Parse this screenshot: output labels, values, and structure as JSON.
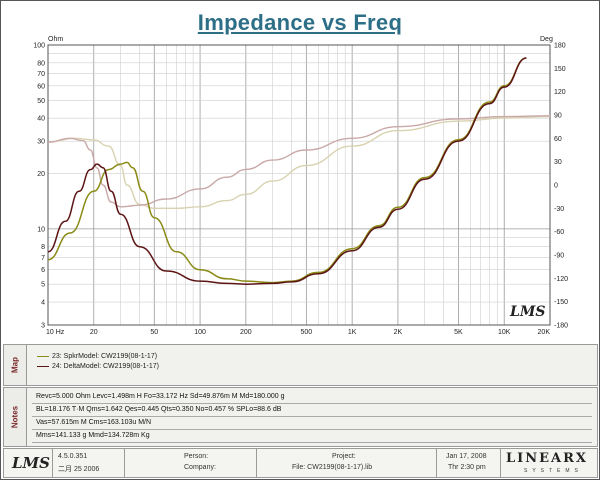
{
  "title": "Impedance vs Freq",
  "axes": {
    "left_unit": "Ohm",
    "right_unit": "Deg",
    "left_ticks": [
      "100",
      "80",
      "70",
      "60",
      "50",
      "40",
      "30",
      "20",
      "10",
      "8",
      "7",
      "6",
      "5",
      "4",
      "3"
    ],
    "right_ticks": [
      "180",
      "150",
      "120",
      "90",
      "60",
      "30",
      "0",
      "-30",
      "-60",
      "-90",
      "-120",
      "-150",
      "-180"
    ],
    "x_ticks": [
      "10 Hz",
      "20",
      "50",
      "100",
      "200",
      "500",
      "1K",
      "2K",
      "5K",
      "10K",
      "20K"
    ],
    "watermark": "LMS"
  },
  "chart_data": {
    "type": "line",
    "title": "Impedance vs Freq",
    "x_scale": "log",
    "xlim": [
      10,
      20000
    ],
    "y_left": {
      "unit": "Ohm",
      "scale": "log",
      "ylim": [
        3,
        100
      ]
    },
    "y_right": {
      "unit": "Deg",
      "scale": "linear",
      "ylim": [
        -180,
        180
      ]
    },
    "grid": true,
    "series": [
      {
        "name": "23: SpkrModel: CW2199(08-1-17)",
        "kind": "impedance",
        "axis": "left",
        "color": "#8a8a16",
        "x": [
          10,
          14,
          20,
          25,
          30,
          33,
          36,
          42,
          50,
          70,
          100,
          150,
          200,
          300,
          400,
          600,
          1000,
          1500,
          2000,
          3000,
          5000,
          8000,
          10000,
          14000
        ],
        "y": [
          6.8,
          9.5,
          16,
          21,
          22.5,
          23,
          21.5,
          16,
          11.5,
          7.5,
          6.0,
          5.35,
          5.2,
          5.1,
          5.2,
          5.8,
          7.8,
          10.4,
          13.1,
          19,
          30.5,
          49,
          60,
          85
        ]
      },
      {
        "name": "24: DeltaModel: CW2199(08-1-17)",
        "kind": "impedance",
        "axis": "left",
        "color": "#5c1414",
        "x": [
          10,
          13,
          16,
          19,
          21,
          23,
          26,
          30,
          40,
          60,
          100,
          150,
          200,
          300,
          400,
          600,
          1000,
          1500,
          2000,
          3000,
          5000,
          8000,
          10000,
          14000
        ],
        "y": [
          7.5,
          11,
          16,
          21,
          22.5,
          21.5,
          16,
          12,
          8,
          5.9,
          5.2,
          5.05,
          5.0,
          5.05,
          5.15,
          5.7,
          7.6,
          10.2,
          12.8,
          18.6,
          30,
          48,
          59,
          85
        ]
      },
      {
        "name": "23: SpkrModel: CW2199(08-1-17)",
        "kind": "phase",
        "axis": "right",
        "color": "#d8d2b0",
        "x": [
          10,
          15,
          20,
          25,
          30,
          33,
          40,
          50,
          70,
          100,
          150,
          200,
          300,
          500,
          1000,
          2000,
          5000,
          10000,
          20000
        ],
        "y": [
          55,
          60,
          58,
          50,
          25,
          0,
          -25,
          -30,
          -30,
          -28,
          -20,
          -12,
          5,
          25,
          50,
          70,
          82,
          86,
          88
        ]
      },
      {
        "name": "24: DeltaModel: CW2199(08-1-17)",
        "kind": "phase",
        "axis": "right",
        "color": "#c9a8a8",
        "x": [
          10,
          14,
          17,
          19,
          21,
          23,
          26,
          30,
          40,
          60,
          100,
          150,
          200,
          300,
          500,
          1000,
          2000,
          5000,
          10000,
          20000
        ],
        "y": [
          55,
          60,
          57,
          45,
          22,
          0,
          -22,
          -28,
          -26,
          -18,
          -5,
          10,
          20,
          32,
          45,
          60,
          75,
          85,
          88,
          89
        ]
      }
    ]
  },
  "map": {
    "label": "Map",
    "items": [
      {
        "text": "23: SpkrModel: CW2199(08-1-17)",
        "color": "#8a8a16"
      },
      {
        "text": "24: DeltaModel: CW2199(08-1-17)",
        "color": "#5c1414"
      }
    ]
  },
  "notes": {
    "label": "Notes",
    "lines": [
      "Revc=5.000 Ohm  Levc=1.498m H  Fo=33.172 Hz  Sd=49.876m M  Md=180.000 g",
      "BL=18.176 T·M  Qms=1.642  Qes=0.445  Qts=0.350  No=0.457 %  SPLo=88.6 dB",
      "Vas=57.615m M     Cms=163.103u M/N",
      "Mms=141.133 g  Mmd=134.728m Kg"
    ]
  },
  "footer": {
    "logo": "LMS",
    "version": "4.5.0.351",
    "version_date": "二月 25 2006",
    "person_label": "Person:",
    "company_label": "Company:",
    "project_label": "Project:",
    "file": "File: CW2199(08-1-17).lib",
    "date": "Jan 17, 2008",
    "time": "Thr  2:30 pm",
    "brand": "LINEARX",
    "brand_sub": "SYSTEMS"
  }
}
